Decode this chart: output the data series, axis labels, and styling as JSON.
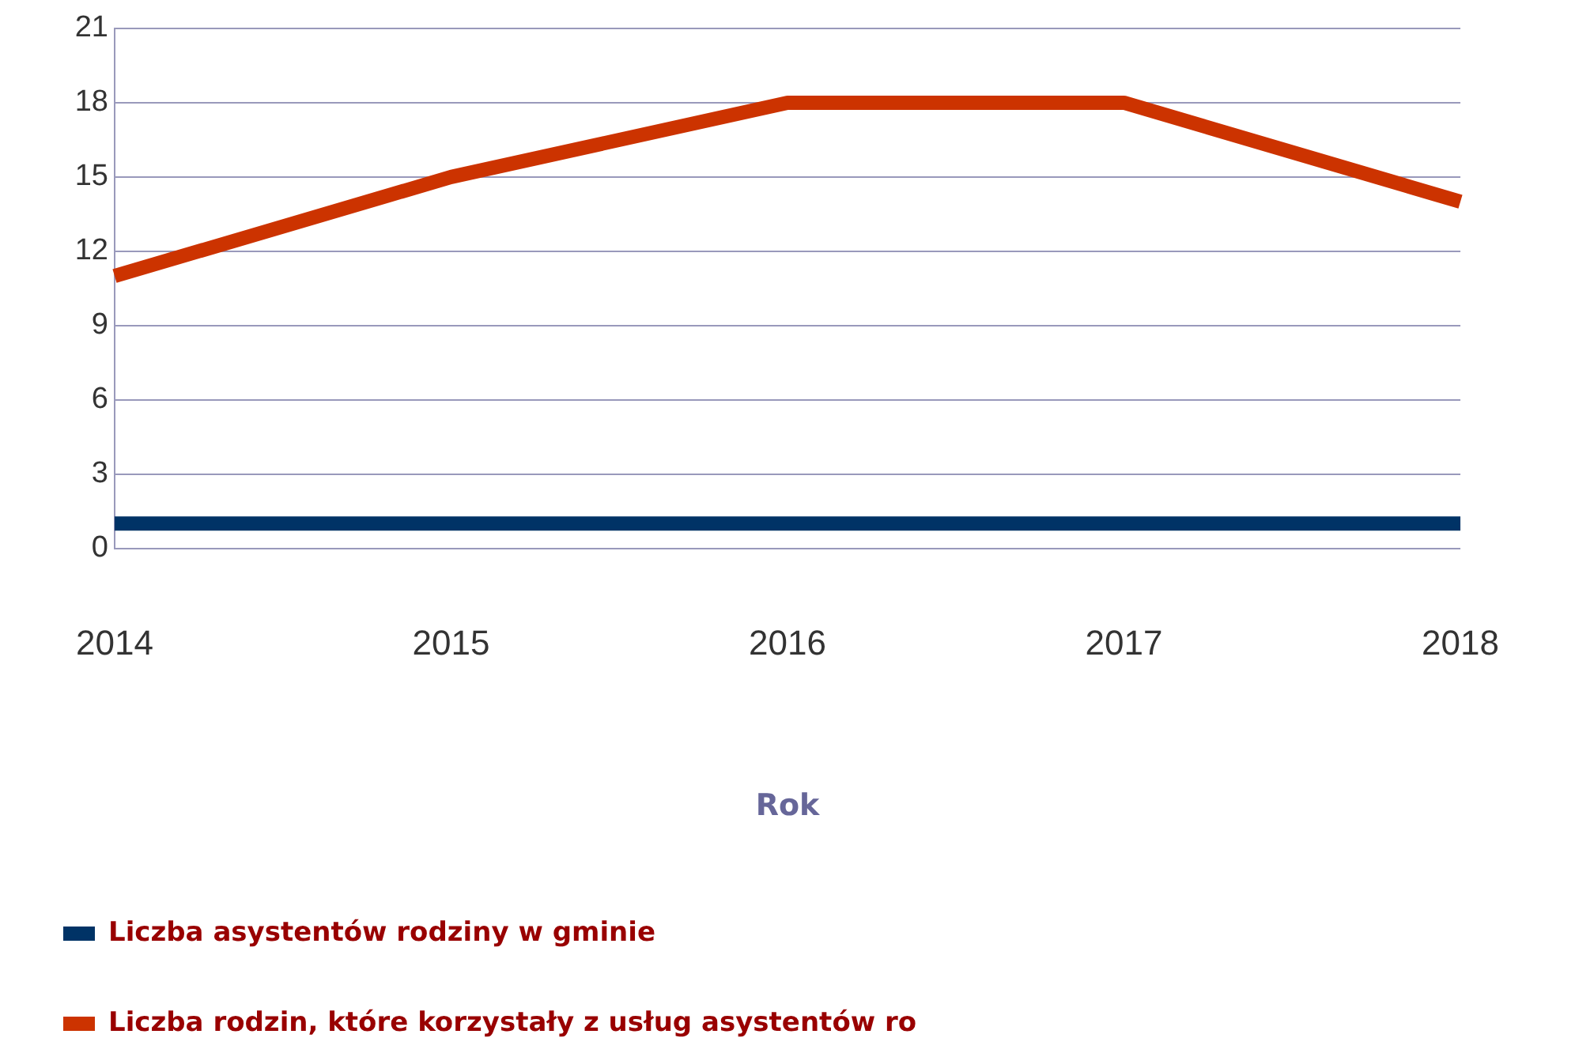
{
  "chart_data": {
    "type": "line",
    "xlabel": "Rok",
    "categories": [
      "2014",
      "2015",
      "2016",
      "2017",
      "2018"
    ],
    "series": [
      {
        "name": "Liczba asystentów rodziny w gminie",
        "color": "#003366",
        "values": [
          1,
          1,
          1,
          1,
          1
        ]
      },
      {
        "name": "Liczba rodzin, które korzystały z usług asystentów ro",
        "color": "#cc3300",
        "values": [
          11,
          15,
          18,
          18,
          14
        ]
      }
    ],
    "ylim": [
      0,
      21
    ],
    "yticks": [
      0,
      3,
      6,
      9,
      12,
      15,
      18,
      21
    ],
    "grid": "y",
    "legend": "bottom",
    "marker": "none",
    "line_style": "solid"
  }
}
